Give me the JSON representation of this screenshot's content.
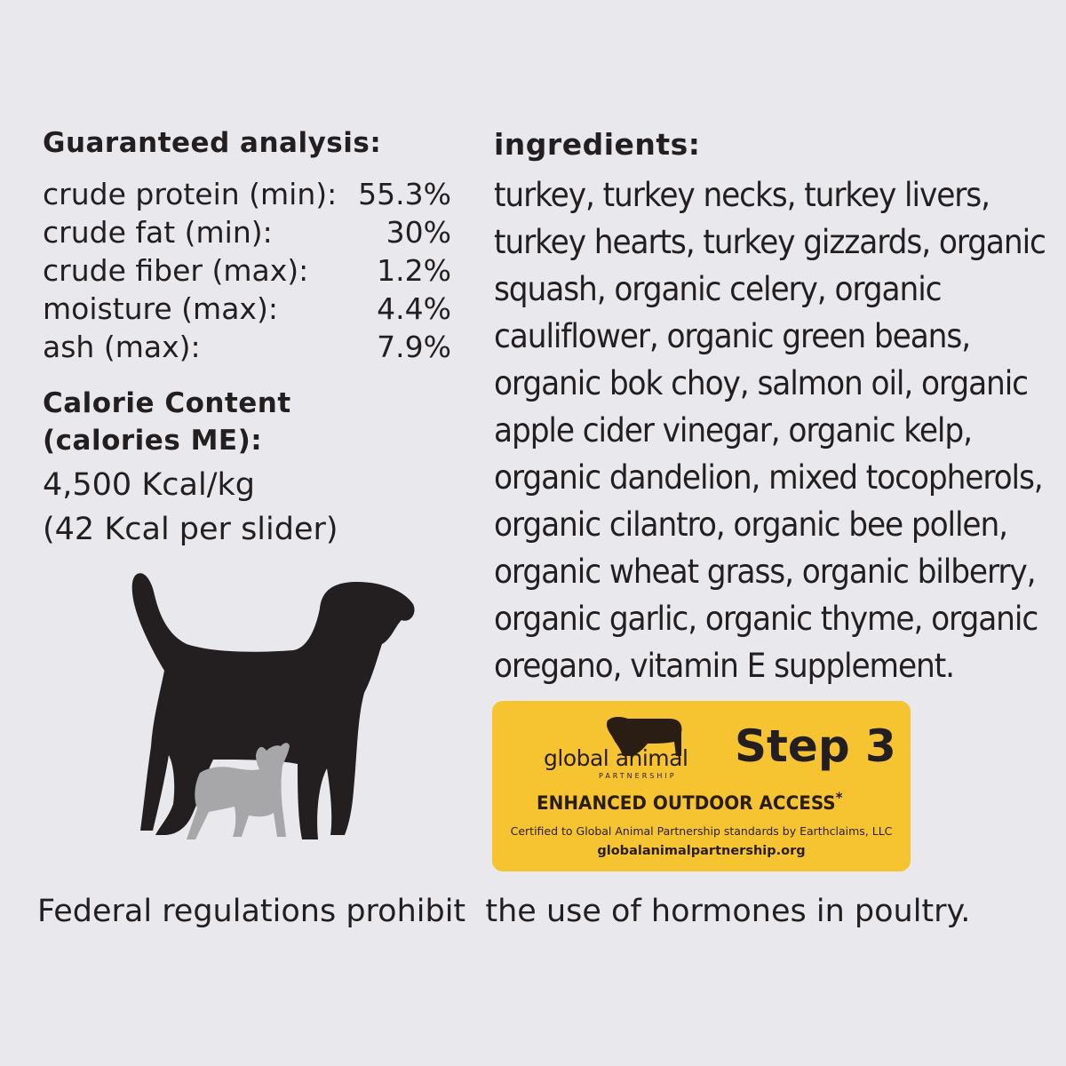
{
  "analysis": {
    "title": "Guaranteed analysis:",
    "rows": [
      {
        "label": "crude protein (min):",
        "value": "55.3%"
      },
      {
        "label": "crude fat (min):",
        "value": "30%"
      },
      {
        "label": "crude fiber (max):",
        "value": "1.2%"
      },
      {
        "label": "moisture (max):",
        "value": "4.4%"
      },
      {
        "label": "ash (max):",
        "value": "7.9%"
      }
    ]
  },
  "calorie": {
    "title_line1": "Calorie Content",
    "title_line2": "(calories ME):",
    "value_line1": "4,500 Kcal/kg",
    "value_line2": "(42 Kcal per slider)"
  },
  "ingredients": {
    "title": "ingredients:",
    "lines": [
      "turkey, turkey necks, turkey livers,",
      "turkey hearts, turkey gizzards, organic",
      "squash, organic celery, organic",
      "cauliflower, organic green beans,",
      "organic bok choy, salmon oil, organic",
      "apple cider vinegar, organic kelp,",
      "organic dandelion, mixed tocopherols,",
      "organic cilantro, organic bee pollen,",
      "organic wheat grass, organic bilberry,",
      "organic garlic, organic thyme, organic",
      "oregano, vitamin E supplement."
    ]
  },
  "certification": {
    "logo_text": "global animal",
    "logo_subtext": "PARTNERSHIP",
    "step": "Step 3",
    "level": "ENHANCED OUTDOOR ACCESS",
    "asterisk": "*",
    "certified_by": "Certified to Global Animal Partnership standards by Earthclaims, LLC",
    "website": "globalanimalpartnership.org",
    "color": "#f7c431"
  },
  "footer": "Federal regulations prohibit  the use of hormones in poultry.",
  "illustration": {
    "large_dog_color": "#231f20",
    "small_dog_color": "#a7a7aa"
  }
}
